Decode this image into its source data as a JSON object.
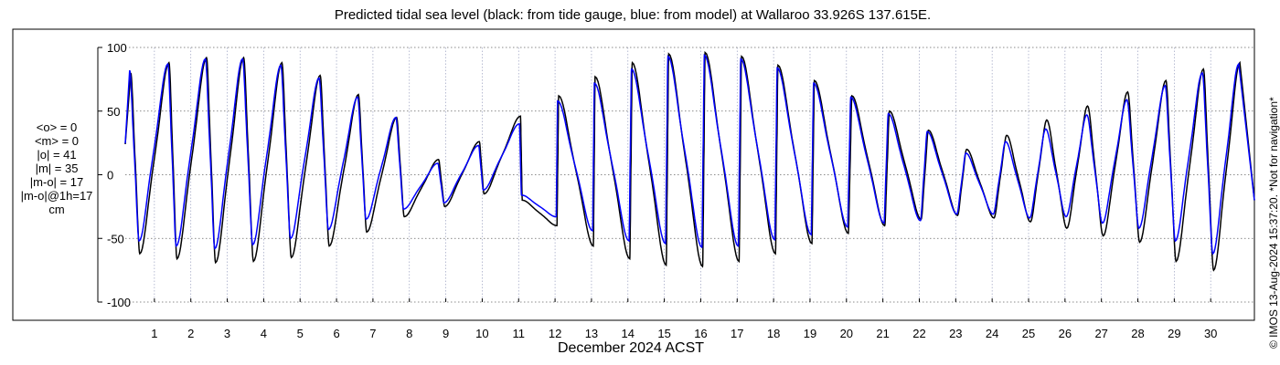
{
  "title": "Predicted tidal sea level (black: from tide gauge, blue: from model) at Wallaroo 33.926S 137.615E.",
  "stats": {
    "mean_obs": "<o> = 0",
    "mean_model": "<m> = 0",
    "abs_obs": "|o| = 41",
    "abs_model": "|m| = 35",
    "abs_diff": "|m-o| = 17",
    "abs_diff_1h": "|m-o|@1h=17",
    "unit": "cm"
  },
  "credit": "© IMOS 13-Aug-2024 15:37:20. *Not for navigation*",
  "colors": {
    "gauge": "#000000",
    "model": "#0000ff",
    "grid": "#888888",
    "axis_box": "#000000"
  },
  "chart_data": {
    "type": "line",
    "title": "Predicted tidal sea level (black: from tide gauge, blue: from model) at Wallaroo 33.926S 137.615E.",
    "xlabel": "December 2024 ACST",
    "ylabel": "",
    "xlim": [
      0.2,
      31.2
    ],
    "ylim": [
      -100,
      100
    ],
    "x_ticks": [
      1,
      2,
      3,
      4,
      5,
      6,
      7,
      8,
      9,
      10,
      11,
      12,
      13,
      14,
      15,
      16,
      17,
      18,
      19,
      20,
      21,
      22,
      23,
      24,
      25,
      26,
      27,
      28,
      29,
      30
    ],
    "x_tick_labels": [
      "1",
      "2",
      "3",
      "4",
      "5",
      "6",
      "7",
      "8",
      "9",
      "10",
      "11",
      "12",
      "13",
      "14",
      "15",
      "16",
      "17",
      "18",
      "19",
      "20",
      "21",
      "22",
      "23",
      "24",
      "25",
      "26",
      "27",
      "28",
      "29",
      "30"
    ],
    "y_ticks": [
      -100,
      -50,
      0,
      50,
      100
    ],
    "y_tick_labels": [
      "-100",
      "-50",
      "0",
      "50",
      "100"
    ],
    "grid": true,
    "series": [
      {
        "name": "black: from tide gauge",
        "color": "#000000",
        "highs": [
          [
            0.35,
            80
          ],
          [
            1.4,
            88
          ],
          [
            2.43,
            92
          ],
          [
            3.45,
            92
          ],
          [
            4.5,
            88
          ],
          [
            5.55,
            78
          ],
          [
            6.6,
            63
          ],
          [
            7.65,
            45
          ],
          [
            8.8,
            12
          ],
          [
            9.92,
            26
          ],
          [
            11.05,
            46
          ],
          [
            12.1,
            62
          ],
          [
            13.1,
            77
          ],
          [
            14.12,
            88
          ],
          [
            15.12,
            95
          ],
          [
            16.12,
            96
          ],
          [
            17.12,
            93
          ],
          [
            18.12,
            86
          ],
          [
            19.12,
            74
          ],
          [
            20.15,
            62
          ],
          [
            21.18,
            50
          ],
          [
            22.25,
            35
          ],
          [
            23.3,
            20
          ],
          [
            24.4,
            31
          ],
          [
            25.5,
            43
          ],
          [
            26.62,
            54
          ],
          [
            27.72,
            65
          ],
          [
            28.77,
            74
          ],
          [
            29.8,
            83
          ],
          [
            30.8,
            88
          ]
        ],
        "lows": [
          [
            0.6,
            -62
          ],
          [
            1.62,
            -66
          ],
          [
            2.68,
            -69
          ],
          [
            3.72,
            -68
          ],
          [
            4.76,
            -65
          ],
          [
            5.8,
            -56
          ],
          [
            6.83,
            -45
          ],
          [
            7.86,
            -33
          ],
          [
            8.97,
            -25
          ],
          [
            10.05,
            -15
          ],
          [
            11.1,
            -20
          ],
          [
            12.05,
            -40
          ],
          [
            13.05,
            -56
          ],
          [
            14.05,
            -66
          ],
          [
            15.05,
            -71
          ],
          [
            16.05,
            -72
          ],
          [
            17.05,
            -68
          ],
          [
            18.05,
            -62
          ],
          [
            19.05,
            -54
          ],
          [
            20.05,
            -46
          ],
          [
            21.05,
            -40
          ],
          [
            22.05,
            -35
          ],
          [
            23.05,
            -32
          ],
          [
            24.05,
            -34
          ],
          [
            25.05,
            -37
          ],
          [
            26.05,
            -42
          ],
          [
            27.05,
            -48
          ],
          [
            28.05,
            -53
          ],
          [
            29.05,
            -68
          ],
          [
            30.08,
            -75
          ]
        ]
      },
      {
        "name": "blue: from model",
        "color": "#0000ff",
        "highs": [
          [
            0.32,
            82
          ],
          [
            1.37,
            87
          ],
          [
            2.4,
            91
          ],
          [
            3.42,
            91
          ],
          [
            4.47,
            86
          ],
          [
            5.52,
            76
          ],
          [
            6.58,
            61
          ],
          [
            7.63,
            45
          ],
          [
            8.78,
            9
          ],
          [
            9.9,
            23
          ],
          [
            11.02,
            40
          ],
          [
            12.07,
            58
          ],
          [
            13.08,
            72
          ],
          [
            14.1,
            83
          ],
          [
            15.1,
            93
          ],
          [
            16.1,
            94
          ],
          [
            17.1,
            91
          ],
          [
            18.1,
            84
          ],
          [
            19.1,
            72
          ],
          [
            20.12,
            61
          ],
          [
            21.15,
            48
          ],
          [
            22.22,
            34
          ],
          [
            23.28,
            17
          ],
          [
            24.37,
            26
          ],
          [
            25.47,
            36
          ],
          [
            26.6,
            47
          ],
          [
            27.7,
            59
          ],
          [
            28.75,
            70
          ],
          [
            29.77,
            80
          ],
          [
            30.77,
            87
          ]
        ],
        "lows": [
          [
            0.58,
            -52
          ],
          [
            1.6,
            -56
          ],
          [
            2.66,
            -58
          ],
          [
            3.7,
            -55
          ],
          [
            4.74,
            -50
          ],
          [
            5.78,
            -43
          ],
          [
            6.81,
            -35
          ],
          [
            7.84,
            -27
          ],
          [
            8.95,
            -22
          ],
          [
            10.03,
            -12
          ],
          [
            11.08,
            -16
          ],
          [
            12.03,
            -33
          ],
          [
            13.03,
            -44
          ],
          [
            14.03,
            -52
          ],
          [
            15.03,
            -54
          ],
          [
            16.03,
            -57
          ],
          [
            17.03,
            -56
          ],
          [
            18.03,
            -51
          ],
          [
            19.03,
            -47
          ],
          [
            20.03,
            -41
          ],
          [
            21.03,
            -38
          ],
          [
            22.03,
            -36
          ],
          [
            23.03,
            -31
          ],
          [
            24.03,
            -31
          ],
          [
            25.03,
            -34
          ],
          [
            26.03,
            -33
          ],
          [
            27.03,
            -38
          ],
          [
            28.03,
            -42
          ],
          [
            29.03,
            -52
          ],
          [
            30.06,
            -62
          ]
        ]
      }
    ]
  }
}
